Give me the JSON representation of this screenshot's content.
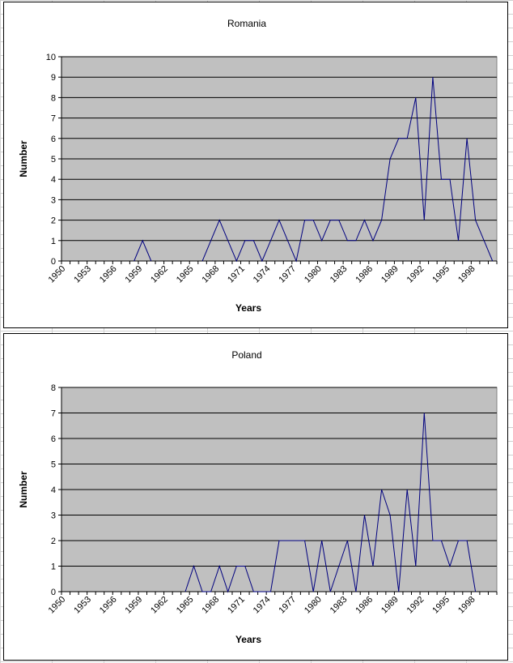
{
  "chart_data": [
    {
      "type": "line",
      "title": "Romania",
      "xlabel": "Years",
      "ylabel": "Number",
      "ylim": [
        0,
        10
      ],
      "yticks": [
        0,
        1,
        2,
        3,
        4,
        5,
        6,
        7,
        8,
        9,
        10
      ],
      "grid": true,
      "plot_background": "#c0c0c0",
      "line_color": "#00007f",
      "x_tick_labels": [
        "1950",
        "1953",
        "1956",
        "1959",
        "1962",
        "1965",
        "1968",
        "1971",
        "1974",
        "1977",
        "1980",
        "1983",
        "1986",
        "1989",
        "1992",
        "1995",
        "1998"
      ],
      "series": [
        {
          "x": [
            1950,
            1951,
            1952,
            1953,
            1954,
            1955,
            1956,
            1957,
            1958,
            1959,
            1960,
            1961,
            1962,
            1963,
            1964,
            1965,
            1966,
            1967,
            1968,
            1969,
            1970,
            1971,
            1972,
            1973,
            1974,
            1975,
            1976,
            1977,
            1978,
            1979,
            1980,
            1981,
            1982,
            1983,
            1984,
            1985,
            1986,
            1987,
            1988,
            1989,
            1990,
            1991,
            1992,
            1993,
            1994,
            1995,
            1996,
            1997,
            1998,
            1999,
            2000
          ],
          "values": [
            null,
            null,
            null,
            null,
            null,
            null,
            null,
            null,
            0,
            1,
            0,
            null,
            null,
            null,
            null,
            null,
            0,
            1,
            2,
            1,
            0,
            1,
            1,
            0,
            1,
            2,
            1,
            0,
            2,
            2,
            1,
            2,
            2,
            1,
            1,
            2,
            1,
            2,
            5,
            6,
            6,
            8,
            2,
            9,
            4,
            4,
            1,
            6,
            2,
            1,
            0
          ]
        }
      ]
    },
    {
      "type": "line",
      "title": "Poland",
      "xlabel": "Years",
      "ylabel": "Number",
      "ylim": [
        0,
        8
      ],
      "yticks": [
        0,
        1,
        2,
        3,
        4,
        5,
        6,
        7,
        8
      ],
      "grid": true,
      "plot_background": "#c0c0c0",
      "line_color": "#00007f",
      "x_tick_labels": [
        "1950",
        "1953",
        "1956",
        "1959",
        "1962",
        "1965",
        "1968",
        "1971",
        "1974",
        "1977",
        "1980",
        "1983",
        "1986",
        "1989",
        "1992",
        "1995",
        "1998"
      ],
      "series": [
        {
          "x": [
            1950,
            1951,
            1952,
            1953,
            1954,
            1955,
            1956,
            1957,
            1958,
            1959,
            1960,
            1961,
            1962,
            1963,
            1964,
            1965,
            1966,
            1967,
            1968,
            1969,
            1970,
            1971,
            1972,
            1973,
            1974,
            1975,
            1976,
            1977,
            1978,
            1979,
            1980,
            1981,
            1982,
            1983,
            1984,
            1985,
            1986,
            1987,
            1988,
            1989,
            1990,
            1991,
            1992,
            1993,
            1994,
            1995,
            1996,
            1997,
            1998,
            1999,
            2000
          ],
          "values": [
            null,
            null,
            null,
            null,
            null,
            null,
            null,
            null,
            null,
            null,
            null,
            null,
            null,
            null,
            0,
            1,
            0,
            0,
            1,
            0,
            1,
            1,
            0,
            0,
            0,
            2,
            2,
            2,
            2,
            0,
            2,
            0,
            1,
            2,
            0,
            3,
            1,
            4,
            3,
            0,
            4,
            1,
            7,
            2,
            2,
            1,
            2,
            2,
            0,
            null,
            null
          ]
        }
      ]
    }
  ]
}
